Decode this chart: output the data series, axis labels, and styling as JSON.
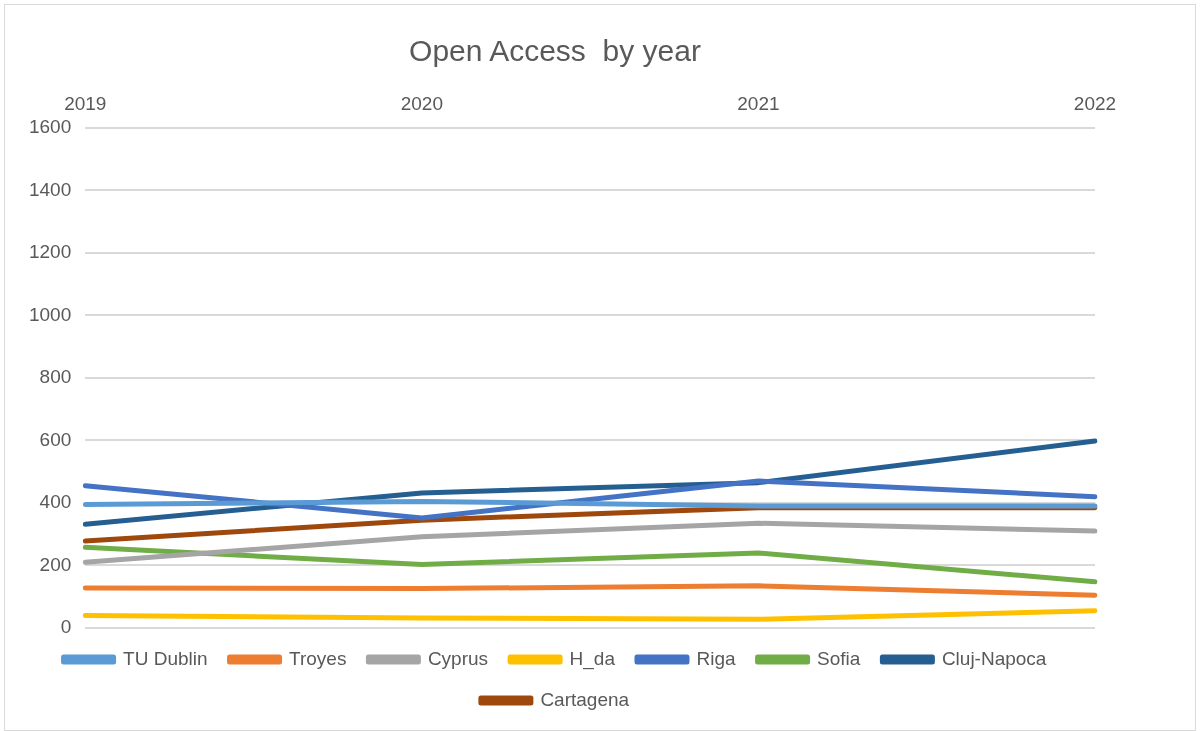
{
  "chart_data": {
    "type": "line",
    "title": "Open Access  by year",
    "categories": [
      "2019",
      "2020",
      "2021",
      "2022"
    ],
    "series": [
      {
        "name": "TU Dublin",
        "color": "#5b9bd5",
        "values": [
          395,
          405,
          390,
          390
        ]
      },
      {
        "name": "Troyes",
        "color": "#ed7d31",
        "values": [
          128,
          126,
          135,
          105
        ]
      },
      {
        "name": "Cyprus",
        "color": "#a5a5a5",
        "values": [
          210,
          292,
          335,
          310
        ]
      },
      {
        "name": "H_da",
        "color": "#ffc000",
        "values": [
          40,
          32,
          28,
          55
        ]
      },
      {
        "name": "Riga",
        "color": "#4472c4",
        "values": [
          455,
          352,
          470,
          420
        ]
      },
      {
        "name": "Sofia",
        "color": "#70ad47",
        "values": [
          258,
          203,
          240,
          148
        ]
      },
      {
        "name": "Cluj-Napoca",
        "color": "#255e91",
        "values": [
          332,
          432,
          465,
          598
        ]
      },
      {
        "name": "Cartagena",
        "color": "#9e480e",
        "values": [
          278,
          345,
          385,
          385
        ]
      }
    ],
    "ylim": [
      0,
      1600
    ],
    "yticks": [
      0,
      200,
      400,
      600,
      800,
      1000,
      1200,
      1400,
      1600
    ],
    "grid": "y",
    "legend": "bottom",
    "marker": "none",
    "line_style": "solid"
  }
}
